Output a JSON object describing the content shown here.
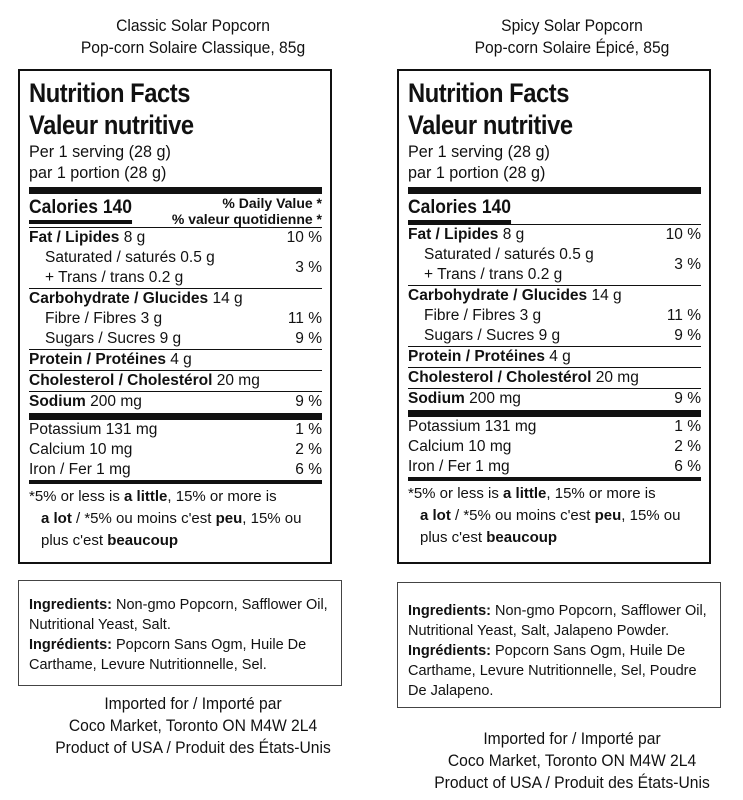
{
  "panels": [
    {
      "product_en": "Classic Solar Popcorn",
      "product_fr": "Pop-corn Solaire Classique, 85g",
      "ingredients_en_label": "Ingredients:",
      "ingredients_en": " Non-gmo Popcorn, Safflower Oil, Nutritional Yeast, Salt.",
      "ingredients_fr_label": "Ingrédients:",
      "ingredients_fr": " Popcorn Sans Ogm, Huile De Carthame, Levure Nutritionnelle, Sel."
    },
    {
      "product_en": "Spicy Solar Popcorn",
      "product_fr": "Pop-corn Solaire Épicé, 85g",
      "ingredients_en_label": "Ingredients:",
      "ingredients_en": " Non-gmo Popcorn, Safflower Oil, Nutritional Yeast, Salt, Jalapeno Powder.",
      "ingredients_fr_label": "Ingrédients:",
      "ingredients_fr": " Popcorn Sans Ogm, Huile De Carthame, Levure Nutritionnelle, Sel, Poudre De Jalapeno."
    }
  ],
  "nutrition": {
    "title_en": "Nutrition Facts",
    "title_fr": "Valeur nutritive",
    "serving_en": "Per 1 serving (28 g)",
    "serving_fr": "par 1 portion (28 g)",
    "calories": "Calories 140",
    "dv_en": "% Daily Value *",
    "dv_fr": "% valeur quotidienne *",
    "fat_label": "Fat / Lipides",
    "fat_amt": " 8 g",
    "fat_pct": "10 %",
    "sat": "Saturated / saturés 0.5 g",
    "trans": "+ Trans / trans 0.2 g",
    "sat_pct": "3 %",
    "carb_label": "Carbohydrate / Glucides",
    "carb_amt": " 14 g",
    "fibre": "Fibre / Fibres 3 g",
    "fibre_pct": "11 %",
    "sugars": "Sugars / Sucres 9 g",
    "sugars_pct": "9 %",
    "protein_label": "Protein / Protéines",
    "protein_amt": " 4 g",
    "chol_label": "Cholesterol / Cholestérol",
    "chol_amt": " 20 mg",
    "sodium_label": "Sodium",
    "sodium_amt": " 200 mg",
    "sodium_pct": "9 %",
    "potassium": "Potassium 131 mg",
    "potassium_pct": "1 %",
    "calcium": "Calcium 10 mg",
    "calcium_pct": "2 %",
    "iron": "Iron / Fer 1 mg",
    "iron_pct": "6 %",
    "foot_1a": "*5% or less is ",
    "foot_1b": "a little",
    "foot_1c": ", 15% or more is",
    "foot_2a": "a lot",
    "foot_2b": " / *5% ou moins c'est ",
    "foot_2c": "peu",
    "foot_2d": ", 15% ou",
    "foot_3a": "plus c'est ",
    "foot_3b": "beaucoup"
  },
  "importer": {
    "line1": "Imported for / Importé par",
    "line2": "Coco Market, Toronto ON M4W 2L4",
    "line3": "Product of USA / Produit des États-Unis"
  }
}
